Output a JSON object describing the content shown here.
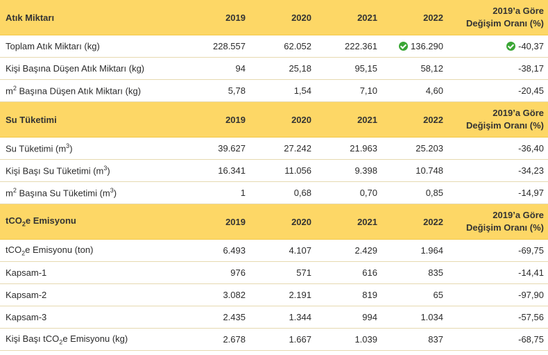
{
  "sections": {
    "waste": {
      "title": "Atık Miktarı",
      "years": [
        "2019",
        "2020",
        "2021",
        "2022"
      ],
      "change_line1": "2019’a Göre",
      "change_line2": "Değişim Oranı (%)",
      "rows": [
        {
          "label": "Toplam Atık Miktarı (kg)",
          "v2019": "228.557",
          "v2020": "62.052",
          "v2021": "222.361",
          "v2022": "136.290",
          "change": "-40,37"
        },
        {
          "label": "Kişi Başına Düşen Atık Miktarı (kg)",
          "v2019": "94",
          "v2020": "25,18",
          "v2021": "95,15",
          "v2022": "58,12",
          "change": "-38,17"
        },
        {
          "label_pre": "m",
          "label_sup": "2",
          "label_post": " Başına Düşen Atık Miktarı (kg)",
          "v2019": "5,78",
          "v2020": "1,54",
          "v2021": "7,10",
          "v2022": "4,60",
          "change": "-20,45"
        }
      ]
    },
    "water": {
      "title": "Su Tüketimi",
      "years": [
        "2019",
        "2020",
        "2021",
        "2022"
      ],
      "change_line1": "2019’a Göre",
      "change_line2": "Değişim Oranı (%)",
      "rows": [
        {
          "label_pre": "Su Tüketimi (m",
          "label_sup": "3",
          "label_post": ")",
          "v2019": "39.627",
          "v2020": "27.242",
          "v2021": "21.963",
          "v2022": "25.203",
          "change": "-36,40"
        },
        {
          "label_pre": "Kişi Başı Su Tüketimi (m",
          "label_sup": "3",
          "label_post": ")",
          "v2019": "16.341",
          "v2020": "11.056",
          "v2021": "9.398",
          "v2022": "10.748",
          "change": "-34,23"
        },
        {
          "label_pre": "m",
          "label_sup": "2",
          "label_mid": " Başına Su Tüketimi (m",
          "label_sup2": "3",
          "label_post": ")",
          "v2019": "1",
          "v2020": "0,68",
          "v2021": "0,70",
          "v2022": "0,85",
          "change": "-14,97"
        }
      ]
    },
    "emission": {
      "title_pre": "tCO",
      "title_sub": "2",
      "title_post": "e Emisyonu",
      "years": [
        "2019",
        "2020",
        "2021",
        "2022"
      ],
      "change_line1": "2019’a Göre",
      "change_line2": "Değişim Oranı (%)",
      "rows": [
        {
          "label_pre": "tCO",
          "label_sub": "2",
          "label_post": "e Emisyonu (ton)",
          "v2019": "6.493",
          "v2020": "4.107",
          "v2021": "2.429",
          "v2022": "1.964",
          "change": "-69,75"
        },
        {
          "label": "Kapsam-1",
          "v2019": "976",
          "v2020": "571",
          "v2021": "616",
          "v2022": "835",
          "change": "-14,41"
        },
        {
          "label": "Kapsam-2",
          "v2019": "3.082",
          "v2020": "2.191",
          "v2021": "819",
          "v2022": "65",
          "change": "-97,90"
        },
        {
          "label": "Kapsam-3",
          "v2019": "2.435",
          "v2020": "1.344",
          "v2021": "994",
          "v2022": "1.034",
          "change": "-57,56"
        },
        {
          "label_pre": "Kişi Başı tCO",
          "label_sub": "2",
          "label_post": "e Emisyonu (kg)",
          "v2019": "2.678",
          "v2020": "1.667",
          "v2021": "1.039",
          "v2022": "837",
          "change": "-68,75"
        }
      ]
    }
  },
  "icons": {
    "check": "check-circle-icon",
    "check_color": "#3aa635",
    "header_color": "#fdd766"
  }
}
